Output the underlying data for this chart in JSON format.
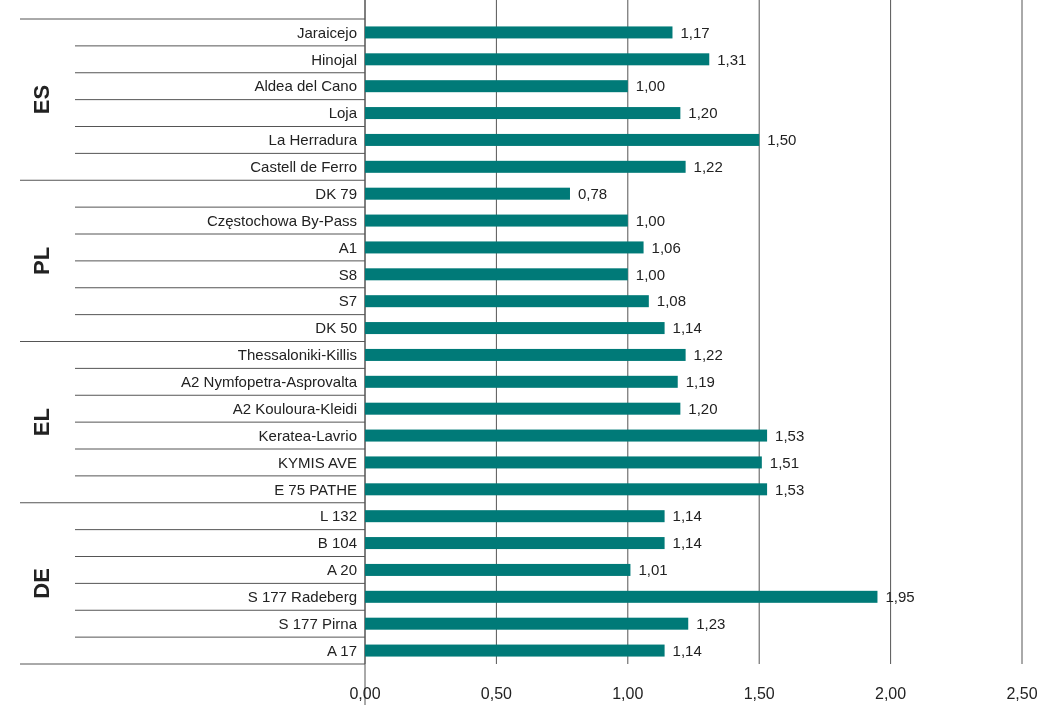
{
  "chart_data": {
    "type": "bar",
    "orientation": "horizontal",
    "categories": [
      "Jaraicejo",
      "Hinojal",
      "Aldea del Cano",
      "Loja",
      "La Herradura",
      "Castell de Ferro",
      "DK 79",
      "Częstochowa By-Pass",
      "A1",
      "S8",
      "S7",
      "DK 50",
      "Thessaloniki-Killis",
      "A2 Nymfopetra-Asprovalta",
      "A2 Kouloura-Kleidi",
      "Keratea-Lavrio",
      "KYMIS AVE",
      "E 75 PATHE",
      "L 132",
      "B 104",
      "A 20",
      "S 177 Radeberg",
      "S 177 Pirna",
      "A 17"
    ],
    "values": [
      1.17,
      1.31,
      1.0,
      1.2,
      1.5,
      1.22,
      0.78,
      1.0,
      1.06,
      1.0,
      1.08,
      1.14,
      1.22,
      1.19,
      1.2,
      1.53,
      1.51,
      1.53,
      1.14,
      1.14,
      1.01,
      1.95,
      1.23,
      1.14
    ],
    "value_labels": [
      "1,17",
      "1,31",
      "1,00",
      "1,20",
      "1,50",
      "1,22",
      "0,78",
      "1,00",
      "1,06",
      "1,00",
      "1,08",
      "1,14",
      "1,22",
      "1,19",
      "1,20",
      "1,53",
      "1,51",
      "1,53",
      "1,14",
      "1,14",
      "1,01",
      "1,95",
      "1,23",
      "1,14"
    ],
    "color": "#007a78",
    "xlim": [
      0,
      2.5
    ],
    "xticks": [
      {
        "value": 0,
        "label": "0,00"
      },
      {
        "value": 0.5,
        "label": "0,50"
      },
      {
        "value": 1,
        "label": "1,00"
      },
      {
        "value": 1.5,
        "label": "1,50"
      },
      {
        "value": 2,
        "label": "2,00"
      },
      {
        "value": 2.5,
        "label": "2,50"
      }
    ],
    "grid": "x",
    "annotations": [
      "ES",
      "PL",
      "EL",
      "DE"
    ]
  }
}
